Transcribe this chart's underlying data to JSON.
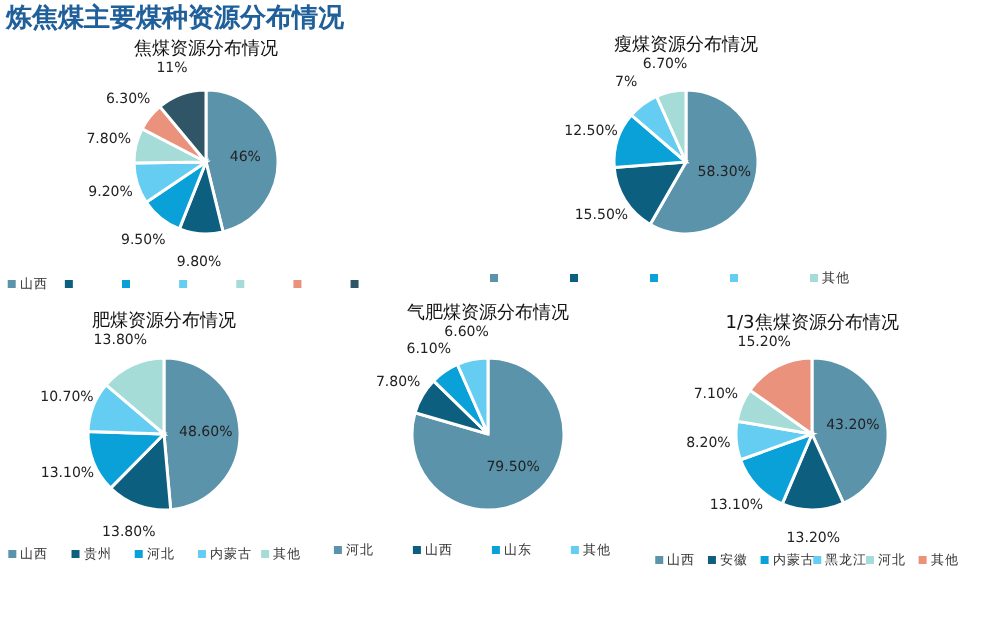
{
  "chart_data": [
    {
      "type": "pie",
      "title": "炼焦煤主要煤种资源分布情况",
      "subtitle": "焦煤资源分布情况",
      "categories": [
        "山西",
        null,
        null,
        null,
        null,
        null,
        null
      ],
      "values": [
        46,
        9.8,
        9.5,
        9.2,
        7.8,
        6.3,
        11
      ],
      "value_labels": [
        "46%",
        "9.80%",
        "9.50%",
        "9.20%",
        "7.80%",
        "6.30%",
        "11%"
      ],
      "colors": [
        "#5b93ab",
        "#0c5f7e",
        "#0aa0d8",
        "#66cdf2",
        "#a5dcd8",
        "#ea927c",
        "#2f5566"
      ],
      "legend": "bottom"
    },
    {
      "type": "pie",
      "subtitle": "瘦煤资源分布情况",
      "categories": [
        null,
        null,
        null,
        null,
        "其他"
      ],
      "values": [
        58.3,
        15.5,
        12.5,
        7,
        6.7
      ],
      "value_labels": [
        "58.30%",
        "15.50%",
        "12.50%",
        "7%",
        "6.70%"
      ],
      "colors": [
        "#5b93ab",
        "#0c5f7e",
        "#0aa0d8",
        "#66cdf2",
        "#a5dcd8"
      ],
      "legend": "bottom"
    },
    {
      "type": "pie",
      "subtitle": "肥煤资源分布情况",
      "categories": [
        "山西",
        "贵州",
        "河北",
        "内蒙古",
        "其他"
      ],
      "values": [
        48.6,
        13.8,
        13.1,
        10.7,
        13.8
      ],
      "value_labels": [
        "48.60%",
        "13.80%",
        "13.10%",
        "10.70%",
        "13.80%"
      ],
      "colors": [
        "#5b93ab",
        "#0c5f7e",
        "#0aa0d8",
        "#66cdf2",
        "#a5dcd8"
      ],
      "legend": "bottom"
    },
    {
      "type": "pie",
      "subtitle": "气肥煤资源分布情况",
      "categories": [
        "河北",
        "山西",
        "山东",
        "其他"
      ],
      "values": [
        79.5,
        7.8,
        6.1,
        6.6
      ],
      "value_labels": [
        "79.50%",
        "7.80%",
        "6.10%",
        "6.60%"
      ],
      "colors": [
        "#5b93ab",
        "#0c5f7e",
        "#0aa0d8",
        "#66cdf2"
      ],
      "legend": "bottom"
    },
    {
      "type": "pie",
      "subtitle": "1/3焦煤资源分布情况",
      "categories": [
        "山西",
        "安徽",
        "内蒙古",
        "黑龙江",
        "河北",
        "其他"
      ],
      "values": [
        43.2,
        13.2,
        13.1,
        8.2,
        7.1,
        15.2
      ],
      "value_labels": [
        "43.20%",
        "13.20%",
        "13.10%",
        "8.20%",
        "7.10%",
        "15.20%"
      ],
      "colors": [
        "#5b93ab",
        "#0c5f7e",
        "#0aa0d8",
        "#66cdf2",
        "#a5dcd8",
        "#ea927c"
      ],
      "legend": "bottom"
    }
  ]
}
